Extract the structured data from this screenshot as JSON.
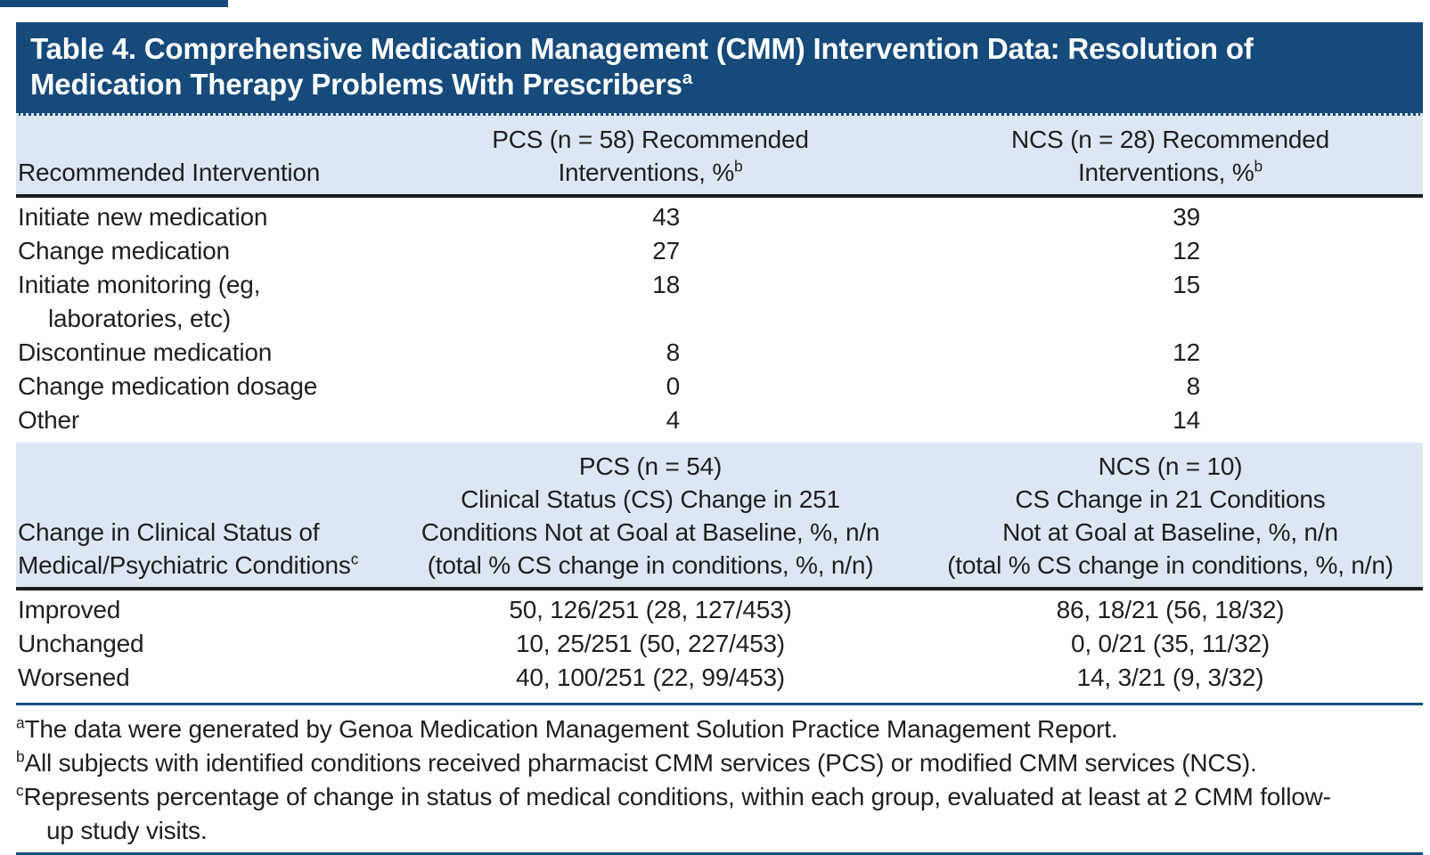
{
  "colors": {
    "navy": "#164a7b",
    "band_blue": "#dce7f3",
    "rule_black": "#1c1c1c",
    "rule_blue": "#16507f",
    "text": "#1f1f1f"
  },
  "title": {
    "line1": "Table 4. Comprehensive Medication Management (CMM) Intervention Data: Resolution of",
    "line2": "Medication Therapy Problems With Prescribers",
    "sup": "a"
  },
  "section1": {
    "row_header": "Recommended Intervention",
    "col_pcs": {
      "line1": "PCS (n = 58) Recommended",
      "line2": "Interventions, %",
      "sup": "b"
    },
    "col_ncs": {
      "line1": "NCS (n = 28) Recommended",
      "line2": "Interventions, %",
      "sup": "b"
    },
    "rows": [
      {
        "label": "Initiate new medication",
        "pcs": "43",
        "ncs": "39"
      },
      {
        "label": "Change medication",
        "pcs": "27",
        "ncs": "12"
      },
      {
        "label": "Initiate monitoring (eg,",
        "label2": "laboratories, etc)",
        "pcs": "18",
        "ncs": "15"
      },
      {
        "label": "Discontinue medication",
        "pcs": "8",
        "ncs": "12"
      },
      {
        "label": "Change medication dosage",
        "pcs": "0",
        "ncs": "8"
      },
      {
        "label": "Other",
        "pcs": "4",
        "ncs": "14"
      }
    ]
  },
  "section2": {
    "row_header": {
      "line1": "Change in Clinical Status of",
      "line2": "Medical/Psychiatric Conditions",
      "sup": "c"
    },
    "col_pcs": {
      "line1": "PCS (n = 54)",
      "line2": "Clinical Status (CS) Change in 251",
      "line3": "Conditions Not at Goal at Baseline, %, n/n",
      "line4": "(total % CS change in conditions, %, n/n)"
    },
    "col_ncs": {
      "line1": "NCS (n = 10)",
      "line2": "CS Change in 21 Conditions",
      "line3": "Not at Goal at Baseline, %, n/n",
      "line4": "(total % CS change in conditions, %, n/n)"
    },
    "rows": [
      {
        "label": "Improved",
        "pcs": "50, 126/251 (28, 127/453)",
        "ncs": "86, 18/21 (56, 18/32)"
      },
      {
        "label": "Unchanged",
        "pcs": "10, 25/251 (50, 227/453)",
        "ncs": "0, 0/21 (35, 11/32)"
      },
      {
        "label": "Worsened",
        "pcs": "40, 100/251 (22, 99/453)",
        "ncs": "14, 3/21 (9, 3/32)"
      }
    ]
  },
  "footnotes": [
    {
      "sup": "a",
      "line1": "The data were generated by Genoa Medication Management Solution Practice Management Report."
    },
    {
      "sup": "b",
      "line1": "All subjects with identified conditions received pharmacist CMM services (PCS) or modified CMM services (NCS)."
    },
    {
      "sup": "c",
      "line1": "Represents percentage of change in status of medical conditions, within each group, evaluated at least at 2 CMM follow-",
      "line2": "up study visits."
    }
  ]
}
